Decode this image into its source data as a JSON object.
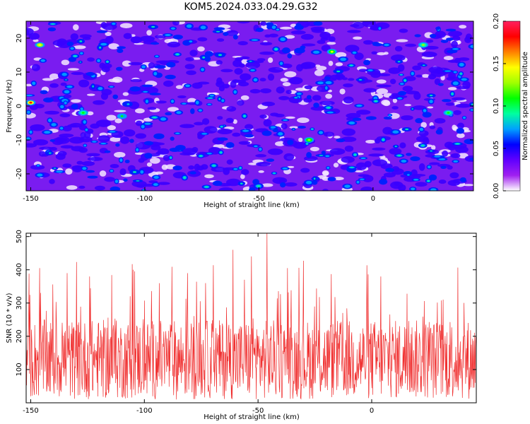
{
  "title": "KOM5.2024.033.04.29.G32",
  "chart_data": [
    {
      "type": "heatmap",
      "xlabel": "Height of straight line (km)",
      "ylabel": "Frequency (Hz)",
      "xlim": [
        -152,
        44
      ],
      "ylim": [
        -25,
        25
      ],
      "x_ticks": [
        -150,
        -100,
        -50,
        0
      ],
      "y_ticks": [
        -20,
        -10,
        0,
        10,
        20
      ],
      "colorbar": {
        "label": "Normalized spectral amplitude",
        "range": [
          0.0,
          0.2
        ],
        "ticks": [
          "0.00",
          "0.05",
          "0.10",
          "0.15",
          "0.20"
        ],
        "colors": [
          "#ffffff",
          "#a020f0",
          "#6000ff",
          "#0000ff",
          "#00a0ff",
          "#00ffa0",
          "#00ff00",
          "#a0ff00",
          "#ffff00",
          "#ff8000",
          "#ff0000",
          "#ff2060"
        ]
      },
      "hotspots": [
        {
          "x": -150,
          "y": 1,
          "v": 0.19
        },
        {
          "x": -146,
          "y": 18,
          "v": 0.15
        },
        {
          "x": -18,
          "y": 16,
          "v": 0.14
        },
        {
          "x": -28,
          "y": -10,
          "v": 0.13
        },
        {
          "x": 22,
          "y": 18,
          "v": 0.12
        },
        {
          "x": 33,
          "y": -2,
          "v": 0.11
        },
        {
          "x": -127,
          "y": -2,
          "v": 0.11
        },
        {
          "x": -110,
          "y": -3,
          "v": 0.1
        }
      ]
    },
    {
      "type": "line",
      "xlabel": "Height of straight line (km)",
      "ylabel": "SNR (10 * v/v)",
      "xlim": [
        -152,
        46
      ],
      "ylim": [
        0,
        510
      ],
      "x_ticks": [
        -150,
        -100,
        -50,
        0
      ],
      "y_ticks": [
        100,
        200,
        300,
        400,
        500
      ],
      "color": "#f03030",
      "peaks": [
        {
          "x": -46,
          "y": 510
        },
        {
          "x": -61,
          "y": 460
        },
        {
          "x": -53,
          "y": 440
        },
        {
          "x": -146,
          "y": 405
        },
        {
          "x": -105,
          "y": 400
        },
        {
          "x": -37,
          "y": 405
        },
        {
          "x": -134,
          "y": 390
        },
        {
          "x": -81,
          "y": 390
        },
        {
          "x": -124,
          "y": 380
        },
        {
          "x": 4,
          "y": 380
        },
        {
          "x": -73,
          "y": 360
        },
        {
          "x": -56,
          "y": 370
        }
      ],
      "baseline_mean": 130,
      "baseline_spread": 120
    }
  ]
}
